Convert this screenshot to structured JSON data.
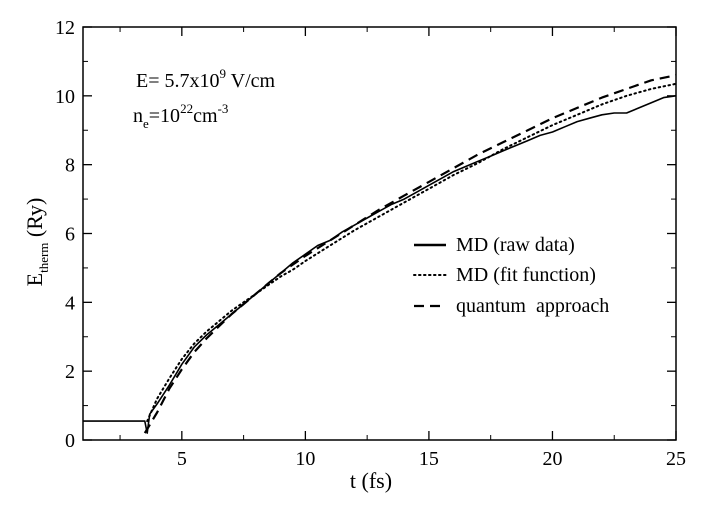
{
  "chart_data": {
    "type": "line",
    "title": "",
    "xlabel": "t (fs)",
    "ylabel": {
      "main": "E",
      "sub": "therm",
      "rest": " (Ry)"
    },
    "xlim": [
      1,
      25
    ],
    "ylim": [
      0,
      12
    ],
    "xticks": [
      5,
      10,
      15,
      20,
      25
    ],
    "yticks": [
      0,
      2,
      4,
      6,
      8,
      10,
      12
    ],
    "grid": false,
    "legend_position": "center-right",
    "annotation": {
      "line1": {
        "prefix": "E= 5.7x10",
        "sup": "9",
        "suffix": " V/cm"
      },
      "line2": {
        "n": "n",
        "sub": "e",
        "eq": "=10",
        "sup1": "22",
        "cm": "cm",
        "sup2": "-3"
      }
    },
    "series": [
      {
        "name": "MD (raw data)",
        "style": "solid",
        "points": [
          [
            1.0,
            0.55
          ],
          [
            3.5,
            0.55
          ],
          [
            3.6,
            0.2
          ],
          [
            3.7,
            0.75
          ],
          [
            4.0,
            1.05
          ],
          [
            4.5,
            1.6
          ],
          [
            5.0,
            2.2
          ],
          [
            5.5,
            2.7
          ],
          [
            6.0,
            3.05
          ],
          [
            6.5,
            3.35
          ],
          [
            7.0,
            3.65
          ],
          [
            7.5,
            3.95
          ],
          [
            8.0,
            4.25
          ],
          [
            8.5,
            4.55
          ],
          [
            9.0,
            4.85
          ],
          [
            9.5,
            5.15
          ],
          [
            10.0,
            5.4
          ],
          [
            10.5,
            5.65
          ],
          [
            11.0,
            5.8
          ],
          [
            11.5,
            6.05
          ],
          [
            12.0,
            6.25
          ],
          [
            12.5,
            6.45
          ],
          [
            13.0,
            6.65
          ],
          [
            13.5,
            6.85
          ],
          [
            14.0,
            7.0
          ],
          [
            14.5,
            7.2
          ],
          [
            15.0,
            7.4
          ],
          [
            15.5,
            7.6
          ],
          [
            16.0,
            7.8
          ],
          [
            16.5,
            7.95
          ],
          [
            17.0,
            8.1
          ],
          [
            17.5,
            8.25
          ],
          [
            18.0,
            8.4
          ],
          [
            18.5,
            8.55
          ],
          [
            19.0,
            8.7
          ],
          [
            19.5,
            8.85
          ],
          [
            20.0,
            8.95
          ],
          [
            20.5,
            9.1
          ],
          [
            21.0,
            9.25
          ],
          [
            21.5,
            9.35
          ],
          [
            22.0,
            9.45
          ],
          [
            22.5,
            9.5
          ],
          [
            23.0,
            9.5
          ],
          [
            23.5,
            9.65
          ],
          [
            24.0,
            9.8
          ],
          [
            24.5,
            9.95
          ],
          [
            25.0,
            10.0
          ]
        ]
      },
      {
        "name": "MD (fit function)",
        "style": "dotted",
        "points": [
          [
            3.6,
            0.55
          ],
          [
            4.0,
            1.2
          ],
          [
            4.5,
            1.8
          ],
          [
            5.0,
            2.35
          ],
          [
            5.5,
            2.8
          ],
          [
            6.0,
            3.15
          ],
          [
            6.5,
            3.45
          ],
          [
            7.0,
            3.75
          ],
          [
            7.5,
            4.0
          ],
          [
            8.0,
            4.25
          ],
          [
            8.5,
            4.5
          ],
          [
            9.0,
            4.75
          ],
          [
            9.5,
            4.95
          ],
          [
            10.0,
            5.2
          ],
          [
            11.0,
            5.65
          ],
          [
            12.0,
            6.1
          ],
          [
            13.0,
            6.5
          ],
          [
            14.0,
            6.9
          ],
          [
            15.0,
            7.3
          ],
          [
            16.0,
            7.7
          ],
          [
            17.0,
            8.05
          ],
          [
            18.0,
            8.45
          ],
          [
            19.0,
            8.8
          ],
          [
            20.0,
            9.15
          ],
          [
            21.0,
            9.45
          ],
          [
            22.0,
            9.75
          ],
          [
            23.0,
            10.0
          ],
          [
            24.0,
            10.2
          ],
          [
            25.0,
            10.35
          ]
        ]
      },
      {
        "name": "quantum  approach",
        "style": "dashed",
        "points": [
          [
            3.5,
            0.2
          ],
          [
            4.0,
            0.8
          ],
          [
            4.5,
            1.5
          ],
          [
            5.0,
            2.05
          ],
          [
            5.5,
            2.55
          ],
          [
            6.0,
            2.95
          ],
          [
            6.5,
            3.3
          ],
          [
            7.0,
            3.65
          ],
          [
            7.5,
            3.95
          ],
          [
            8.0,
            4.25
          ],
          [
            8.5,
            4.55
          ],
          [
            9.0,
            4.85
          ],
          [
            9.5,
            5.1
          ],
          [
            10.0,
            5.35
          ],
          [
            11.0,
            5.8
          ],
          [
            12.0,
            6.25
          ],
          [
            13.0,
            6.7
          ],
          [
            14.0,
            7.1
          ],
          [
            15.0,
            7.5
          ],
          [
            16.0,
            7.9
          ],
          [
            17.0,
            8.3
          ],
          [
            18.0,
            8.65
          ],
          [
            19.0,
            9.0
          ],
          [
            20.0,
            9.35
          ],
          [
            21.0,
            9.65
          ],
          [
            22.0,
            9.95
          ],
          [
            23.0,
            10.2
          ],
          [
            24.0,
            10.45
          ],
          [
            25.0,
            10.6
          ]
        ]
      }
    ]
  }
}
